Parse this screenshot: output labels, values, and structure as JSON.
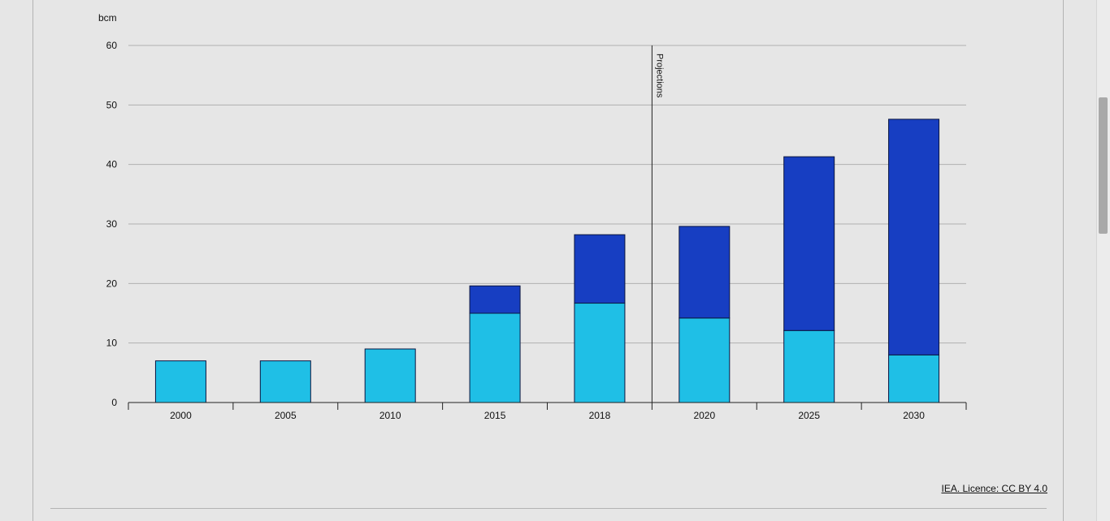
{
  "chart_data": {
    "type": "bar",
    "stacked": true,
    "unit_label": "bcm",
    "categories": [
      "2000",
      "2005",
      "2010",
      "2015",
      "2018",
      "2020",
      "2025",
      "2030"
    ],
    "series": [
      {
        "values": [
          7,
          7,
          9,
          15,
          16.7,
          14.2,
          12.1,
          8
        ],
        "color": "#1fbfe6"
      },
      {
        "values": [
          0,
          0,
          0,
          4.6,
          11.5,
          15.4,
          29.2,
          39.6
        ],
        "color": "#173ec2"
      }
    ],
    "ylim": [
      0,
      60
    ],
    "yticks": [
      "0",
      "10",
      "20",
      "30",
      "40",
      "50",
      "60"
    ],
    "grid": true,
    "annotation": {
      "label": "Projections",
      "after_category": "2018"
    }
  },
  "credit": {
    "label": "IEA. Licence: CC BY 4.0"
  },
  "colors": {
    "background": "#e6e6e6",
    "grid": "#b0b0b0",
    "axis": "#222222"
  }
}
